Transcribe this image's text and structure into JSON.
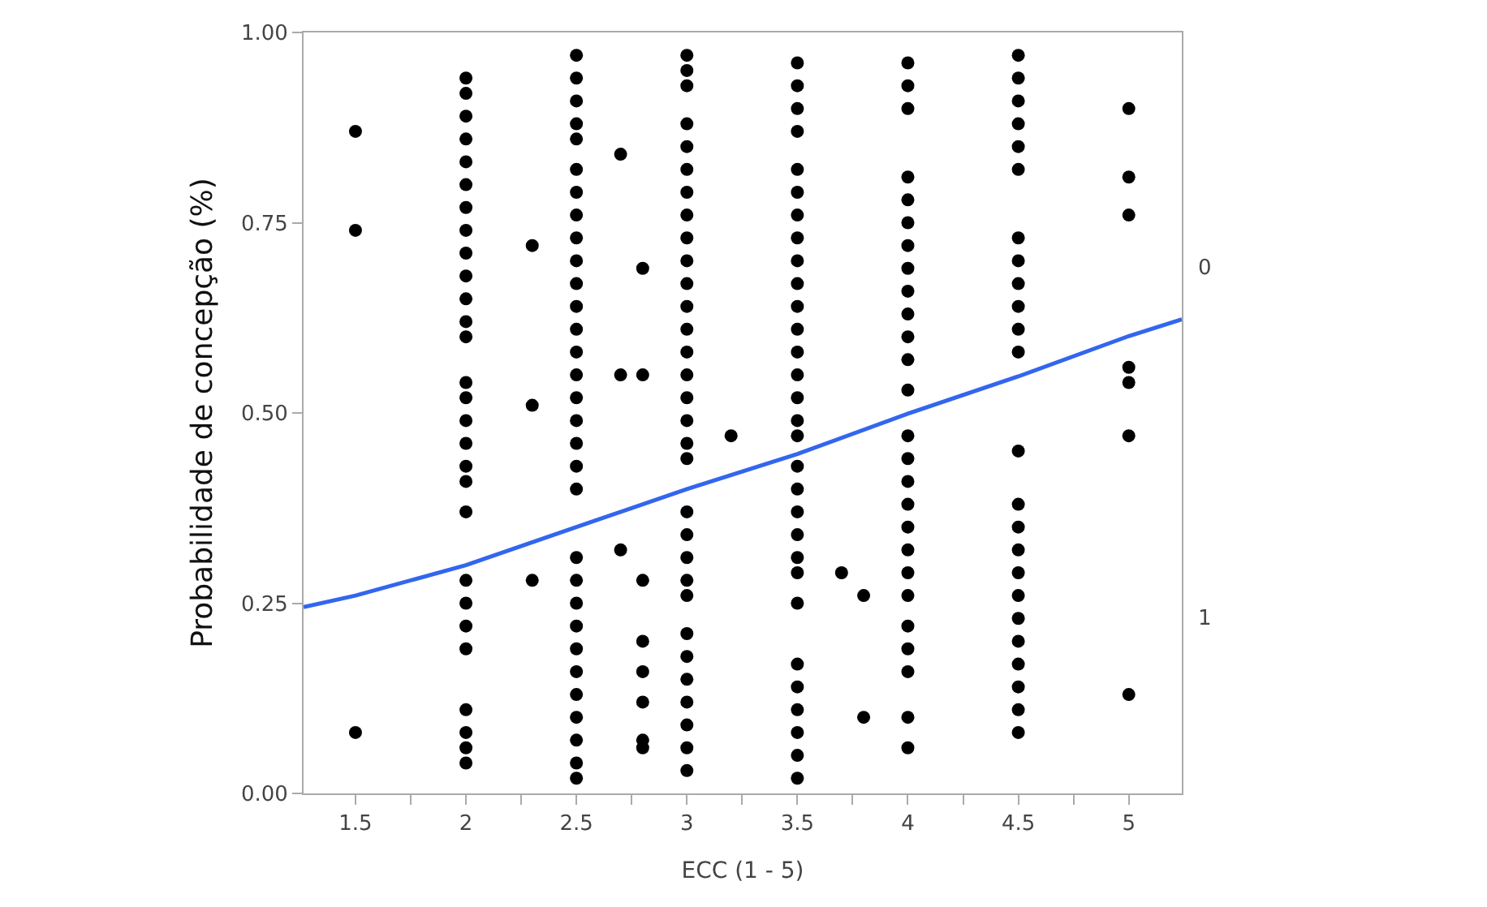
{
  "chart_data": {
    "type": "scatter",
    "xlabel": "ECC (1 - 5)",
    "ylabel": "Probabilidade de concepção (%)",
    "xlim": [
      1.265,
      5.24
    ],
    "xticks": [
      1.5,
      {
        "value": 1.75,
        "label": null
      },
      2,
      {
        "value": 2.25,
        "label": null
      },
      2.5,
      {
        "value": 2.75,
        "label": null
      },
      3,
      {
        "value": 3.25,
        "label": null
      },
      3.5,
      {
        "value": 3.75,
        "label": null
      },
      4,
      {
        "value": 4.25,
        "label": null
      },
      4.5,
      {
        "value": 4.75,
        "label": null
      },
      5
    ],
    "ylim": [
      0,
      1
    ],
    "yticks": [
      {
        "value": 0,
        "label": "0.00"
      },
      {
        "value": 0.25,
        "label": "0.25"
      },
      {
        "value": 0.5,
        "label": "0.50"
      },
      {
        "value": 0.75,
        "label": "0.75"
      },
      {
        "value": 1,
        "label": "1.00"
      }
    ],
    "annotations": [
      "0",
      "1"
    ],
    "grid": false,
    "series": [
      {
        "color": "#000000",
        "marker": "circle",
        "x": [
          1.5,
          1.5,
          1.5,
          2,
          2,
          2,
          2,
          2,
          2,
          2,
          2,
          2,
          2,
          2,
          2,
          2,
          2,
          2,
          2,
          2,
          2,
          2,
          2,
          2,
          2,
          2,
          2,
          2,
          2,
          2,
          2,
          2.3,
          2.3,
          2.3,
          2.5,
          2.5,
          2.5,
          2.5,
          2.5,
          2.5,
          2.5,
          2.5,
          2.5,
          2.5,
          2.5,
          2.5,
          2.5,
          2.5,
          2.5,
          2.5,
          2.5,
          2.5,
          2.5,
          2.5,
          2.5,
          2.5,
          2.5,
          2.5,
          2.5,
          2.5,
          2.5,
          2.5,
          2.5,
          2.5,
          2.5,
          2.7,
          2.7,
          2.7,
          2.8,
          2.8,
          2.8,
          2.8,
          2.8,
          2.8,
          2.8,
          2.8,
          3,
          3,
          3,
          3,
          3,
          3,
          3,
          3,
          3,
          3,
          3,
          3,
          3,
          3,
          3,
          3,
          3,
          3,
          3,
          3,
          3,
          3,
          3,
          3,
          3,
          3,
          3,
          3,
          3,
          3,
          3,
          3.2,
          3.5,
          3.5,
          3.5,
          3.5,
          3.5,
          3.5,
          3.5,
          3.5,
          3.5,
          3.5,
          3.5,
          3.5,
          3.5,
          3.5,
          3.5,
          3.5,
          3.5,
          3.5,
          3.5,
          3.5,
          3.5,
          3.5,
          3.5,
          3.5,
          3.5,
          3.5,
          3.5,
          3.5,
          3.5,
          3.5,
          3.7,
          3.8,
          3.8,
          4,
          4,
          4,
          4,
          4,
          4,
          4,
          4,
          4,
          4,
          4,
          4,
          4,
          4,
          4,
          4,
          4,
          4,
          4,
          4,
          4,
          4,
          4,
          4,
          4,
          4,
          4.5,
          4.5,
          4.5,
          4.5,
          4.5,
          4.5,
          4.5,
          4.5,
          4.5,
          4.5,
          4.5,
          4.5,
          4.5,
          4.5,
          4.5,
          4.5,
          4.5,
          4.5,
          4.5,
          4.5,
          4.5,
          4.5,
          4.5,
          4.5,
          5,
          5,
          5,
          5,
          5,
          5,
          5
        ],
        "values": [
          0.87,
          0.74,
          0.08,
          0.94,
          0.92,
          0.89,
          0.86,
          0.83,
          0.8,
          0.77,
          0.74,
          0.71,
          0.68,
          0.65,
          0.62,
          0.6,
          0.54,
          0.52,
          0.49,
          0.46,
          0.43,
          0.41,
          0.37,
          0.28,
          0.25,
          0.22,
          0.19,
          0.11,
          0.08,
          0.06,
          0.04,
          0.72,
          0.51,
          0.28,
          0.97,
          0.94,
          0.91,
          0.88,
          0.86,
          0.82,
          0.79,
          0.76,
          0.73,
          0.7,
          0.67,
          0.64,
          0.61,
          0.58,
          0.55,
          0.52,
          0.49,
          0.46,
          0.43,
          0.4,
          0.31,
          0.28,
          0.25,
          0.22,
          0.19,
          0.16,
          0.13,
          0.1,
          0.07,
          0.04,
          0.02,
          0.84,
          0.55,
          0.32,
          0.69,
          0.55,
          0.28,
          0.2,
          0.16,
          0.12,
          0.07,
          0.06,
          0.97,
          0.95,
          0.93,
          0.88,
          0.85,
          0.82,
          0.79,
          0.76,
          0.73,
          0.7,
          0.67,
          0.64,
          0.61,
          0.58,
          0.55,
          0.52,
          0.49,
          0.46,
          0.44,
          0.37,
          0.34,
          0.31,
          0.28,
          0.26,
          0.21,
          0.18,
          0.15,
          0.12,
          0.09,
          0.06,
          0.03,
          0.47,
          0.96,
          0.93,
          0.9,
          0.87,
          0.82,
          0.79,
          0.76,
          0.73,
          0.7,
          0.67,
          0.64,
          0.61,
          0.58,
          0.55,
          0.52,
          0.49,
          0.47,
          0.43,
          0.4,
          0.37,
          0.34,
          0.31,
          0.29,
          0.25,
          0.17,
          0.14,
          0.11,
          0.08,
          0.05,
          0.02,
          0.29,
          0.26,
          0.1,
          0.96,
          0.93,
          0.9,
          0.81,
          0.78,
          0.75,
          0.72,
          0.69,
          0.66,
          0.63,
          0.6,
          0.57,
          0.53,
          0.47,
          0.44,
          0.41,
          0.38,
          0.35,
          0.32,
          0.29,
          0.26,
          0.22,
          0.19,
          0.16,
          0.1,
          0.06,
          0.97,
          0.94,
          0.91,
          0.88,
          0.85,
          0.82,
          0.73,
          0.7,
          0.67,
          0.64,
          0.61,
          0.58,
          0.45,
          0.38,
          0.35,
          0.32,
          0.29,
          0.26,
          0.23,
          0.2,
          0.17,
          0.14,
          0.11,
          0.08,
          0.9,
          0.81,
          0.76,
          0.56,
          0.54,
          0.47,
          0.13
        ]
      },
      {
        "type": "line",
        "color": "#3366ee",
        "x": [
          1.265,
          1.5,
          2,
          2.5,
          3,
          3.5,
          4,
          4.5,
          5,
          5.24
        ],
        "values": [
          0.245,
          0.26,
          0.3,
          0.35,
          0.4,
          0.446,
          0.499,
          0.548,
          0.601,
          0.623
        ]
      }
    ]
  }
}
